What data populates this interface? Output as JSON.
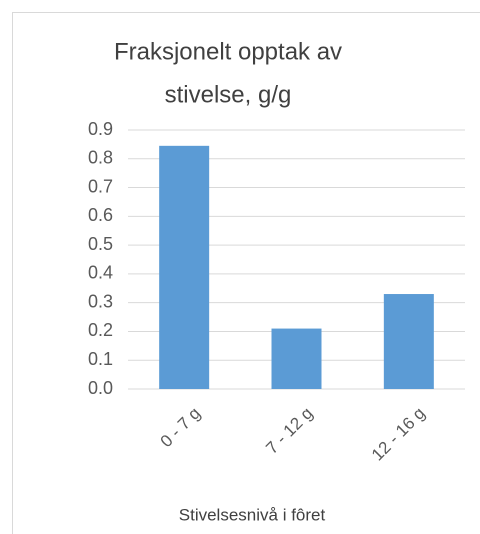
{
  "chart_data": {
    "type": "bar",
    "title": [
      "Fraksjonelt opptak  av",
      "stivelse, g/g"
    ],
    "x_label": "Stivelsesnivå i fôret",
    "categories": [
      "0 - 7 g",
      "7 - 12 g",
      "12 - 16 g"
    ],
    "values": [
      0.845,
      0.21,
      0.33
    ],
    "color": "#5b9bd5",
    "ylim": [
      0,
      0.9
    ],
    "yticks": [
      {
        "value": 0,
        "label": "0.0"
      },
      0.1,
      0.2,
      0.3,
      0.4,
      0.5,
      0.6,
      0.7,
      0.8,
      0.9
    ],
    "grid": true
  }
}
